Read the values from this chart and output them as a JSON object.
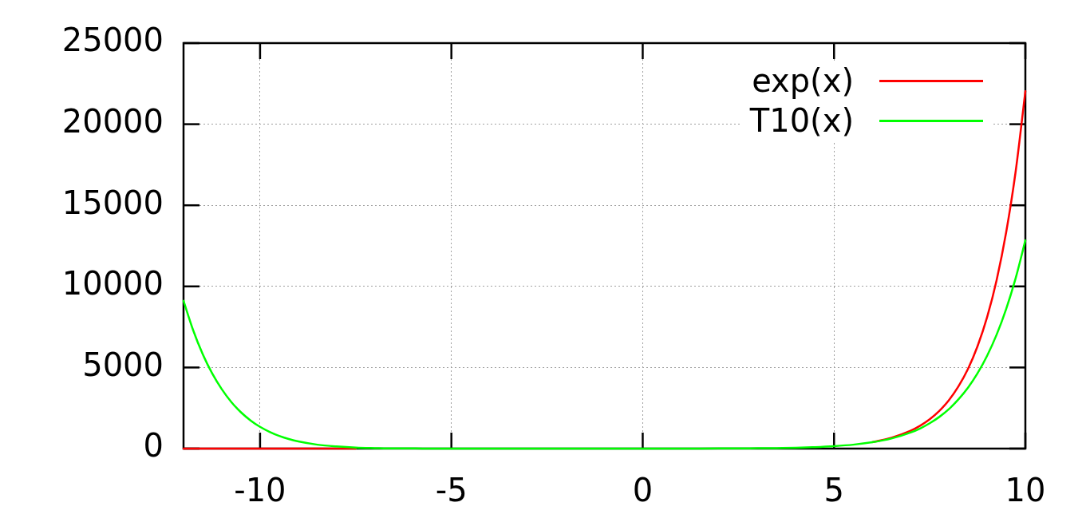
{
  "chart_data": {
    "type": "line",
    "x": [
      -12,
      -11.75,
      -11.5,
      -11.25,
      -11,
      -10.75,
      -10.5,
      -10.25,
      -10,
      -9.75,
      -9.5,
      -9.25,
      -9,
      -8.5,
      -8,
      -7.5,
      -7,
      -6.5,
      -6,
      -5.5,
      -5,
      -4,
      -3,
      -2,
      -1,
      0,
      1,
      2,
      2.5,
      3,
      3.5,
      4,
      4.5,
      5,
      5.5,
      6,
      6.5,
      7,
      7.25,
      7.5,
      7.75,
      8,
      8.25,
      8.5,
      8.75,
      9,
      9.25,
      9.5,
      9.75,
      10
    ],
    "series": [
      {
        "name": "exp(x)",
        "color": "#ff0000",
        "values": [
          0,
          0,
          0,
          0,
          0,
          0,
          0,
          0,
          0,
          0,
          0,
          0,
          0,
          0,
          0,
          0,
          null,
          null,
          null,
          null,
          null,
          null,
          null,
          null,
          null,
          null,
          null,
          null,
          null,
          null,
          null,
          null,
          null,
          null,
          null,
          400,
          670,
          1100,
          1410,
          1810,
          2320,
          2980,
          3830,
          4910,
          6310,
          8100,
          10400,
          13360,
          17150,
          22030
        ]
      },
      {
        "name": "T10(x)",
        "color": "#00ff00",
        "values": [
          9110,
          7310,
          5830,
          4630,
          3660,
          2870,
          2240,
          1740,
          1340,
          1030,
          780,
          590,
          440,
          240,
          130,
          60,
          30,
          10,
          10,
          0,
          0,
          0,
          0,
          0,
          0,
          0,
          0,
          10,
          10,
          20,
          30,
          50,
          90,
          150,
          240,
          390,
          620,
          990,
          1240,
          1560,
          1950,
          2430,
          3030,
          3750,
          4640,
          5720,
          7030,
          8620,
          10540,
          12840
        ]
      }
    ],
    "xlim": [
      -12,
      10
    ],
    "xticks": [
      -10,
      -5,
      0,
      5,
      10
    ],
    "ylim": [
      0,
      25000
    ],
    "yticks": [
      0,
      5000,
      10000,
      15000,
      20000,
      25000
    ],
    "grid": true,
    "legend": "top right"
  }
}
